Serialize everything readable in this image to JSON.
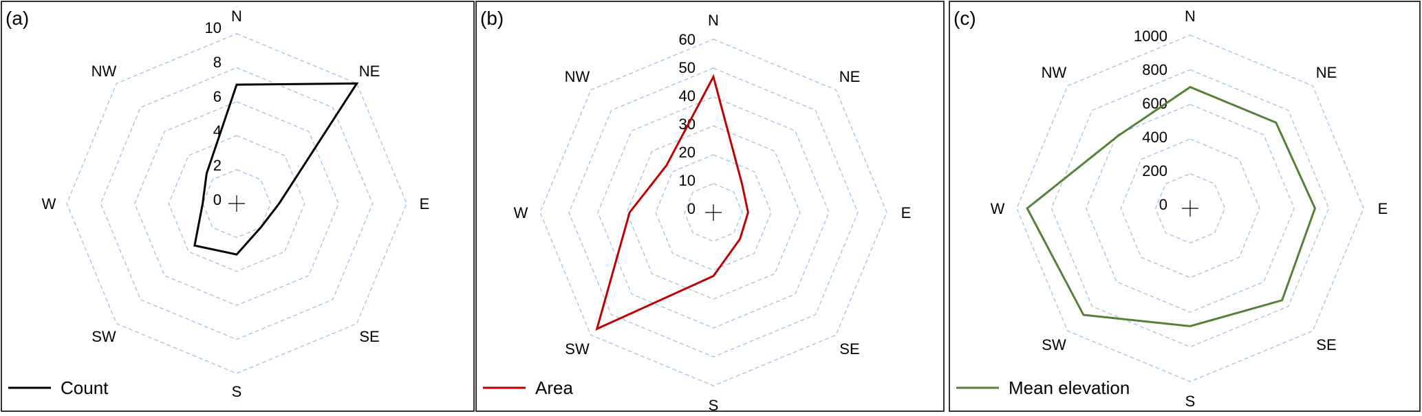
{
  "chart_data": [
    {
      "type": "radar",
      "panel_label": "(a)",
      "categories": [
        "N",
        "NE",
        "E",
        "SE",
        "S",
        "SW",
        "W",
        "NW"
      ],
      "ticks": [
        "0",
        "2",
        "4",
        "6",
        "8",
        "10"
      ],
      "rlim": [
        0,
        10
      ],
      "grid": true,
      "legend_position": "bottom-left",
      "series": [
        {
          "name": "Count",
          "color": "#000000",
          "values": [
            7,
            10,
            2.5,
            2,
            3,
            3.5,
            2,
            2.5
          ]
        }
      ]
    },
    {
      "type": "radar",
      "panel_label": "(b)",
      "categories": [
        "N",
        "NE",
        "E",
        "SE",
        "S",
        "SW",
        "W",
        "NW"
      ],
      "ticks": [
        "0",
        "10",
        "20",
        "30",
        "40",
        "50",
        "60"
      ],
      "rlim": [
        0,
        60
      ],
      "grid": true,
      "legend_position": "bottom-left",
      "series": [
        {
          "name": "Area",
          "color": "#c00000",
          "values": [
            47,
            14,
            12,
            13,
            22,
            57,
            29,
            23
          ]
        }
      ]
    },
    {
      "type": "radar",
      "panel_label": "(c)",
      "categories": [
        "N",
        "NE",
        "E",
        "SE",
        "S",
        "SW",
        "W",
        "NW"
      ],
      "ticks": [
        "0",
        "200",
        "400",
        "600",
        "800",
        "1000"
      ],
      "rlim": [
        0,
        1000
      ],
      "grid": true,
      "legend_position": "bottom-left",
      "series": [
        {
          "name": "Mean elevation",
          "color": "#538135",
          "values": [
            700,
            700,
            720,
            750,
            680,
            870,
            940,
            590
          ]
        }
      ]
    }
  ],
  "colors": {
    "grid": "#9dc3e6",
    "frame": "#000000"
  }
}
